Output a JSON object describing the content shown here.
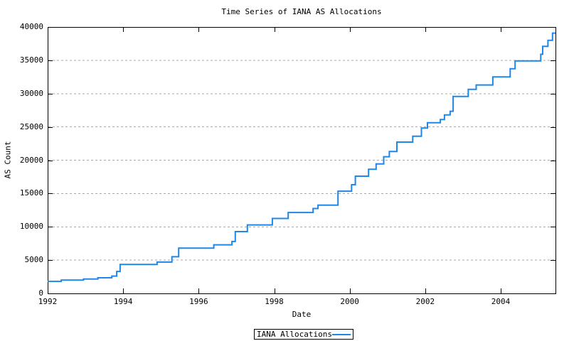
{
  "colors": {
    "line": "#1E87E8",
    "grid": "#A9A9A9",
    "axis": "#000000",
    "text": "#000000",
    "background": "#FFFFFF"
  },
  "legend": {
    "label": "IANA Allocations"
  },
  "chart_data": {
    "type": "line",
    "step_mode": "step-after",
    "title": "Time Series of IANA AS Allocations",
    "xlabel": "Date",
    "ylabel": "AS Count",
    "xlim": [
      1992,
      2005.45
    ],
    "ylim": [
      0,
      40000
    ],
    "grid": {
      "horizontal_dashed": true,
      "vertical": false
    },
    "legend_position": "bottom-center-outside",
    "x_ticks": [
      {
        "label": "1992",
        "value": 1992
      },
      {
        "label": "1994",
        "value": 1994
      },
      {
        "label": "1996",
        "value": 1996
      },
      {
        "label": "1998",
        "value": 1998
      },
      {
        "label": "2000",
        "value": 2000
      },
      {
        "label": "2002",
        "value": 2002
      },
      {
        "label": "2004",
        "value": 2004
      }
    ],
    "y_ticks": [
      {
        "label": "0",
        "value": 0
      },
      {
        "label": "5000",
        "value": 5000
      },
      {
        "label": "10000",
        "value": 10000
      },
      {
        "label": "15000",
        "value": 15000
      },
      {
        "label": "20000",
        "value": 20000
      },
      {
        "label": "25000",
        "value": 25000
      },
      {
        "label": "30000",
        "value": 30000
      },
      {
        "label": "35000",
        "value": 35000
      },
      {
        "label": "40000",
        "value": 40000
      }
    ],
    "series": [
      {
        "name": "IANA Allocations",
        "color": "#1E87E8",
        "points": [
          [
            1992.0,
            1800
          ],
          [
            1992.36,
            2000
          ],
          [
            1992.95,
            2150
          ],
          [
            1993.33,
            2350
          ],
          [
            1993.7,
            2600
          ],
          [
            1993.83,
            3300
          ],
          [
            1993.92,
            4350
          ],
          [
            1994.9,
            4700
          ],
          [
            1995.29,
            5500
          ],
          [
            1995.47,
            6800
          ],
          [
            1996.4,
            7300
          ],
          [
            1996.88,
            7800
          ],
          [
            1996.97,
            9280
          ],
          [
            1997.29,
            10280
          ],
          [
            1997.95,
            11250
          ],
          [
            1998.37,
            12150
          ],
          [
            1999.03,
            12750
          ],
          [
            1999.16,
            13250
          ],
          [
            1999.69,
            15350
          ],
          [
            2000.05,
            16320
          ],
          [
            2000.15,
            17600
          ],
          [
            2000.5,
            18630
          ],
          [
            2000.7,
            19450
          ],
          [
            2000.9,
            20520
          ],
          [
            2001.05,
            21300
          ],
          [
            2001.25,
            22720
          ],
          [
            2001.67,
            23610
          ],
          [
            2001.9,
            24820
          ],
          [
            2002.06,
            25630
          ],
          [
            2002.4,
            26100
          ],
          [
            2002.51,
            26810
          ],
          [
            2002.66,
            27350
          ],
          [
            2002.74,
            29580
          ],
          [
            2003.14,
            30650
          ],
          [
            2003.35,
            31300
          ],
          [
            2003.79,
            32500
          ],
          [
            2004.25,
            33740
          ],
          [
            2004.38,
            34900
          ],
          [
            2005.06,
            35900
          ],
          [
            2005.11,
            37100
          ],
          [
            2005.25,
            38000
          ],
          [
            2005.37,
            39080
          ]
        ]
      }
    ]
  }
}
